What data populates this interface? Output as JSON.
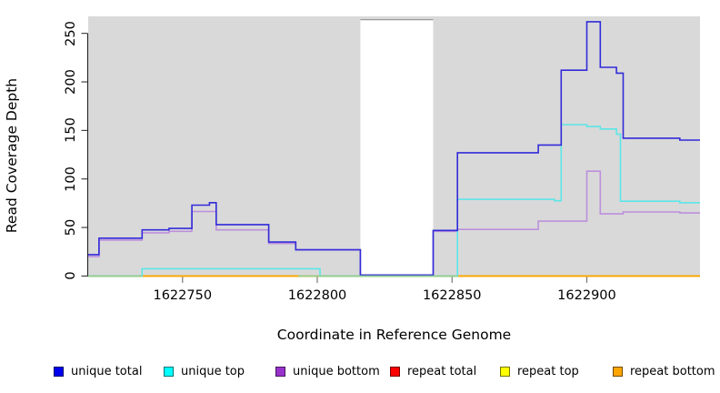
{
  "figure": {
    "xlabel": "Coordinate in Reference Genome",
    "ylabel": "Read Coverage Depth"
  },
  "legend": {
    "items": [
      {
        "label": "unique total",
        "color": "#0000EE"
      },
      {
        "label": "unique top",
        "color": "#00FFFF"
      },
      {
        "label": "unique bottom",
        "color": "#9932CC"
      },
      {
        "label": "repeat total",
        "color": "#FF0000"
      },
      {
        "label": "repeat top",
        "color": "#FFFF00"
      },
      {
        "label": "repeat bottom",
        "color": "#FFA500"
      }
    ]
  },
  "chart_data": {
    "type": "line",
    "subtype": "step-coverage",
    "title": "",
    "xlabel": "Coordinate in Reference Genome",
    "ylabel": "Read Coverage Depth",
    "x_domain": [
      1622715,
      1622942
    ],
    "y_domain": [
      0,
      267.5
    ],
    "x_ticks": [
      "1622750",
      "1622800",
      "1622850",
      "1622900"
    ],
    "x_tick_values": [
      1622750,
      1622800,
      1622850,
      1622900
    ],
    "y_ticks": [
      "0",
      "50",
      "100",
      "150",
      "200",
      "250"
    ],
    "y_tick_values": [
      0,
      50,
      100,
      150,
      200,
      250
    ],
    "grid": false,
    "plot_bg": "#D9D9D9",
    "legend_position": "bottom",
    "gap_region": {
      "x_start": 1622816,
      "x_end": 1622843,
      "fill": "#FFFFFF",
      "top_border": "#999999"
    },
    "overlap_blend": {
      "color": "#8FCE92",
      "note": "greenish tint where cyan/yellow/orange zero-lines overlap",
      "ranges": [
        [
          1622715,
          1622735
        ],
        [
          1622793,
          1622852
        ]
      ]
    },
    "series": [
      {
        "name": "repeat total",
        "color": "#CC2222",
        "points": [
          [
            1622715,
            0
          ],
          [
            1622942,
            0
          ]
        ]
      },
      {
        "name": "repeat top",
        "color": "#EEEE00",
        "points": [
          [
            1622715,
            0
          ],
          [
            1622942,
            0
          ]
        ]
      },
      {
        "name": "repeat bottom",
        "color": "#FFA500",
        "points": [
          [
            1622715,
            0
          ],
          [
            1622942,
            0
          ]
        ]
      },
      {
        "name": "unique bottom",
        "color": "#BC90DC",
        "points": [
          [
            1622715,
            20
          ],
          [
            1622719,
            37
          ],
          [
            1622735,
            44.5
          ],
          [
            1622745,
            46
          ],
          [
            1622753.5,
            66.5
          ],
          [
            1622762.5,
            47.5
          ],
          [
            1622782,
            33.5
          ],
          [
            1622792,
            27
          ],
          [
            1622816,
            0.5
          ],
          [
            1622843,
            46
          ],
          [
            1622852,
            48
          ],
          [
            1622882,
            56.5
          ],
          [
            1622900,
            108
          ],
          [
            1622905,
            64
          ],
          [
            1622913.5,
            66
          ],
          [
            1622934.5,
            65
          ],
          [
            1622942,
            65
          ]
        ]
      },
      {
        "name": "unique top",
        "color": "#5CE6E8",
        "points": [
          [
            1622715,
            0
          ],
          [
            1622735,
            7.5
          ],
          [
            1622801,
            0
          ],
          [
            1622852,
            79
          ],
          [
            1622888,
            77.5
          ],
          [
            1622890.5,
            156
          ],
          [
            1622900,
            154
          ],
          [
            1622905,
            151.5
          ],
          [
            1622911,
            146
          ],
          [
            1622912.5,
            77
          ],
          [
            1622934.5,
            75.5
          ],
          [
            1622942,
            75.5
          ]
        ]
      },
      {
        "name": "unique total",
        "color": "#322BD9",
        "points": [
          [
            1622715,
            22
          ],
          [
            1622719,
            39
          ],
          [
            1622735,
            47.5
          ],
          [
            1622745,
            49
          ],
          [
            1622753.5,
            73
          ],
          [
            1622760,
            75.5
          ],
          [
            1622762.5,
            53
          ],
          [
            1622782,
            35
          ],
          [
            1622792,
            27
          ],
          [
            1622816,
            1
          ],
          [
            1622843,
            47
          ],
          [
            1622852,
            127
          ],
          [
            1622882,
            135
          ],
          [
            1622890.5,
            212
          ],
          [
            1622900,
            262
          ],
          [
            1622905,
            215
          ],
          [
            1622911,
            209
          ],
          [
            1622913.5,
            142
          ],
          [
            1622934.5,
            140
          ],
          [
            1622942,
            140
          ]
        ]
      }
    ]
  }
}
